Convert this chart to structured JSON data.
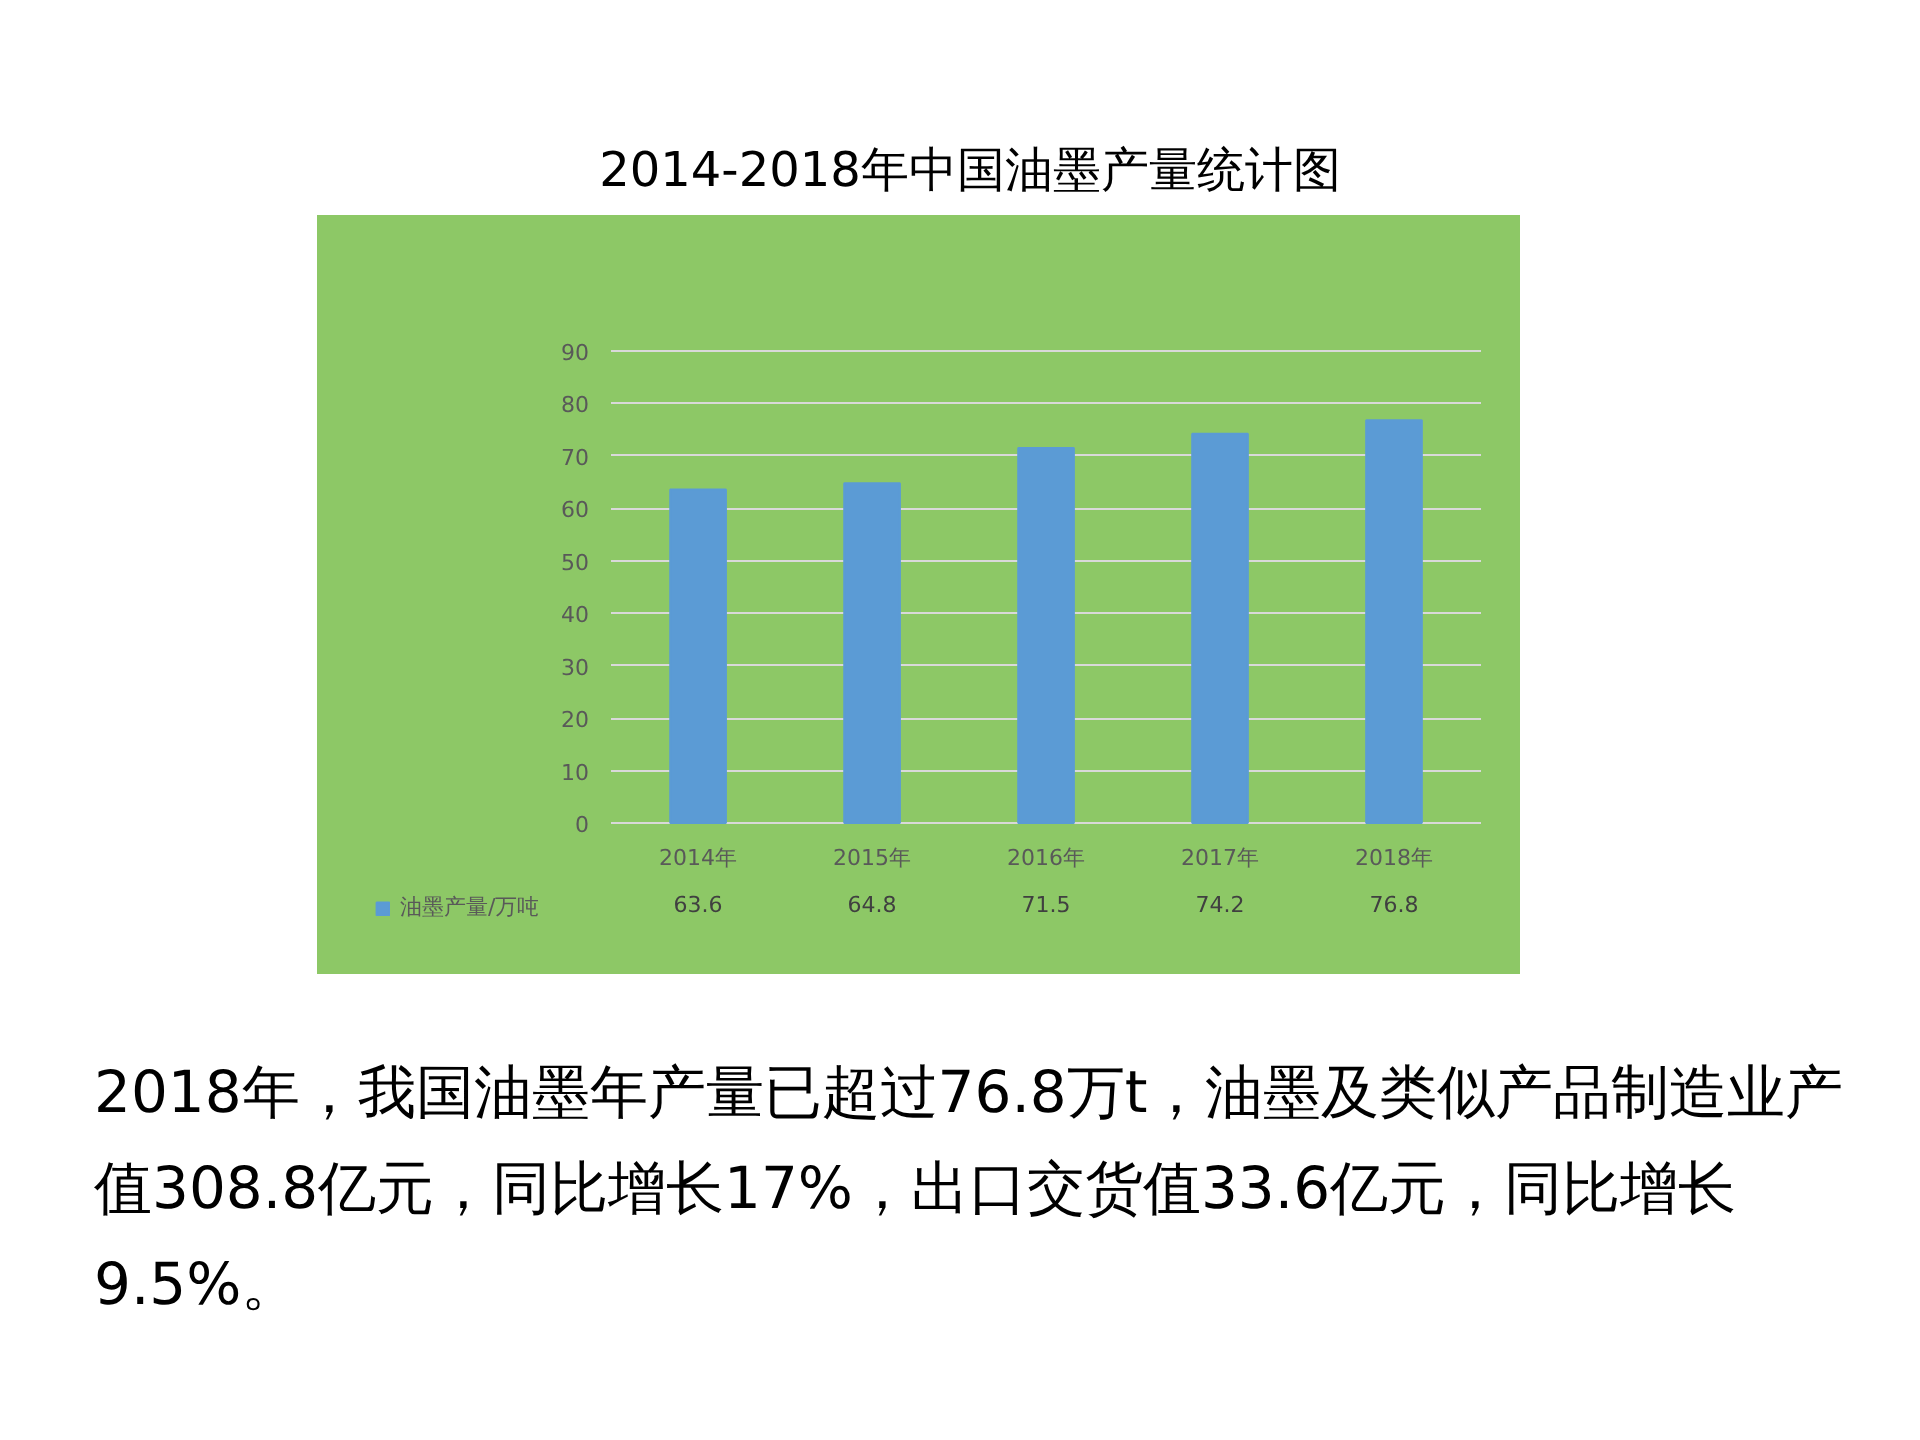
{
  "chart_data": {
    "type": "bar",
    "title": "2014-2018年中国油墨产量统计图",
    "categories": [
      "2014年",
      "2015年",
      "2016年",
      "2017年",
      "2018年"
    ],
    "series": [
      {
        "name": "油墨产量/万吨",
        "color": "#5b9bd5",
        "values": [
          63.6,
          64.8,
          71.5,
          74.2,
          76.8
        ]
      }
    ],
    "ylim": [
      0,
      90
    ],
    "yticks": [
      0,
      10,
      20,
      30,
      40,
      50,
      60,
      70,
      80,
      90
    ],
    "grid": "y",
    "legend": "bottom",
    "data_labels": true,
    "annotations": [
      "2018年，我国油墨年产量已超过76.8万t，油墨及类似产品制造业产值308.8亿元，同比增长17%，出口交货值33.6亿元，同比增长9.5%。"
    ]
  }
}
